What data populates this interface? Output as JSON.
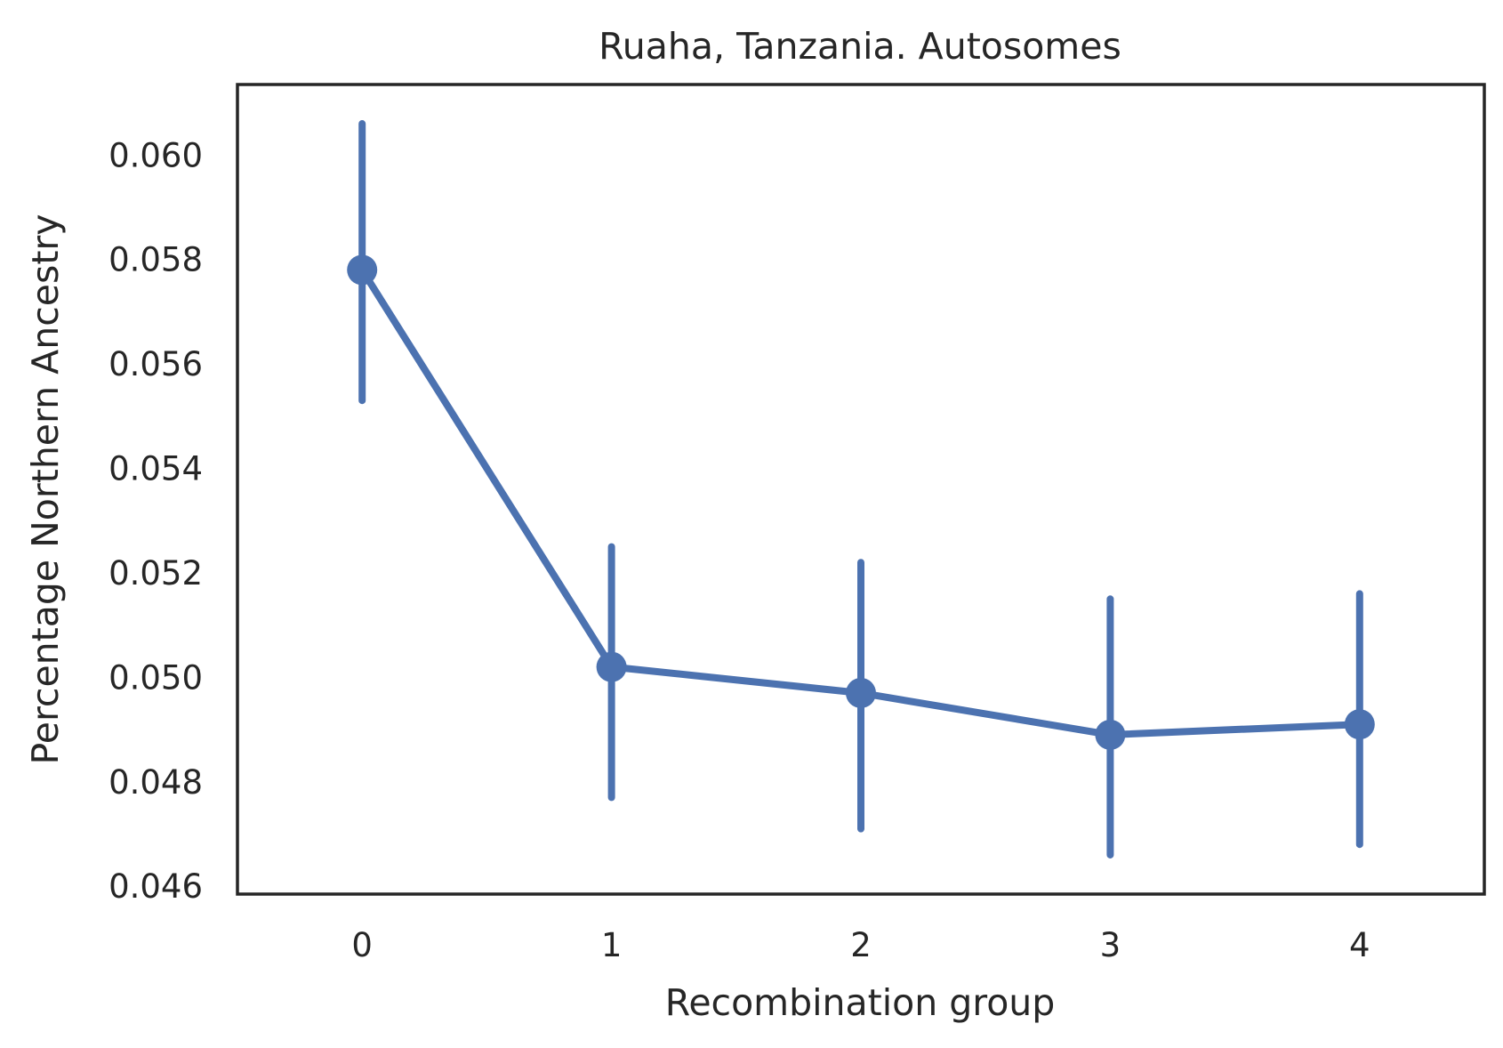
{
  "chart_data": {
    "type": "line",
    "title": "Ruaha, Tanzania. Autosomes",
    "xlabel": "Recombination group",
    "ylabel": "Percentage Northern Ancestry",
    "categories": [
      "0",
      "1",
      "2",
      "3",
      "4"
    ],
    "series": [
      {
        "values": [
          0.0578,
          0.0502,
          0.0497,
          0.0489,
          0.0491
        ],
        "ci_low": [
          0.0553,
          0.0477,
          0.0471,
          0.0466,
          0.0468
        ],
        "ci_high": [
          0.0606,
          0.0525,
          0.0522,
          0.0515,
          0.0516
        ]
      }
    ],
    "yticks": [
      "0.046",
      "0.048",
      "0.050",
      "0.052",
      "0.054",
      "0.056",
      "0.058",
      "0.060"
    ],
    "ylim": [
      0.04585,
      0.06135
    ],
    "grid": false,
    "legend": "none",
    "colors": {
      "series": "#4c72b0",
      "text": "#262626",
      "frame": "#262626"
    }
  }
}
